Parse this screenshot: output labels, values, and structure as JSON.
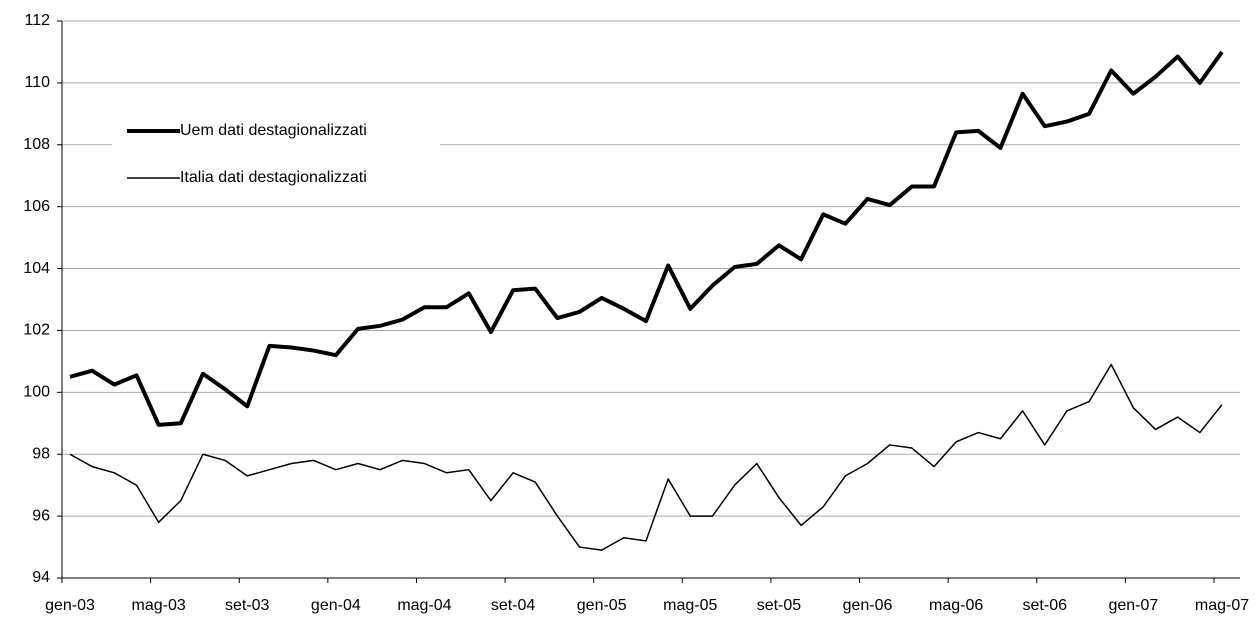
{
  "chart_data": {
    "type": "line",
    "categories": [
      "gen-03",
      null,
      null,
      null,
      "mag-03",
      null,
      null,
      null,
      "set-03",
      null,
      null,
      null,
      "gen-04",
      null,
      null,
      null,
      "mag-04",
      null,
      null,
      null,
      "set-04",
      null,
      null,
      null,
      "gen-05",
      null,
      null,
      null,
      "mag-05",
      null,
      null,
      null,
      "set-05",
      null,
      null,
      null,
      "gen-06",
      null,
      null,
      null,
      "mag-06",
      null,
      null,
      null,
      "set-06",
      null,
      null,
      null,
      "gen-07",
      null,
      null,
      null,
      "mag-07"
    ],
    "series": [
      {
        "name": "Uem dati destagionalizzati",
        "color": "#000000",
        "width": 4,
        "values": [
          100.5,
          100.7,
          100.25,
          100.55,
          98.95,
          99.0,
          100.6,
          100.1,
          99.55,
          101.5,
          101.45,
          101.35,
          101.2,
          102.05,
          102.15,
          102.35,
          102.75,
          102.75,
          103.2,
          101.95,
          103.3,
          103.35,
          102.4,
          102.6,
          103.05,
          102.7,
          102.3,
          104.1,
          102.7,
          103.45,
          104.05,
          104.15,
          104.75,
          104.3,
          105.75,
          105.45,
          106.25,
          106.05,
          106.65,
          106.65,
          108.4,
          108.45,
          107.9,
          109.65,
          108.6,
          108.75,
          109.0,
          110.4,
          109.65,
          110.2,
          110.85,
          110.0,
          111.0
        ]
      },
      {
        "name": "Italia dati destagionalizzati",
        "color": "#000000",
        "width": 1.5,
        "values": [
          98.0,
          97.6,
          97.4,
          97.0,
          95.8,
          96.5,
          98.0,
          97.8,
          97.3,
          97.5,
          97.7,
          97.8,
          97.5,
          97.7,
          97.5,
          97.8,
          97.7,
          97.4,
          97.5,
          96.5,
          97.4,
          97.1,
          96.0,
          95.0,
          94.9,
          95.3,
          95.2,
          97.2,
          96.0,
          96.0,
          97.0,
          97.7,
          96.6,
          95.7,
          96.3,
          97.3,
          97.7,
          98.3,
          98.2,
          97.6,
          98.4,
          98.7,
          98.5,
          99.4,
          98.3,
          99.4,
          99.7,
          100.9,
          99.5,
          98.8,
          99.2,
          98.7,
          99.6
        ]
      }
    ],
    "ylim": [
      94,
      112
    ],
    "yticks": [
      94,
      96,
      98,
      100,
      102,
      104,
      106,
      108,
      110,
      112
    ],
    "grid": true
  }
}
